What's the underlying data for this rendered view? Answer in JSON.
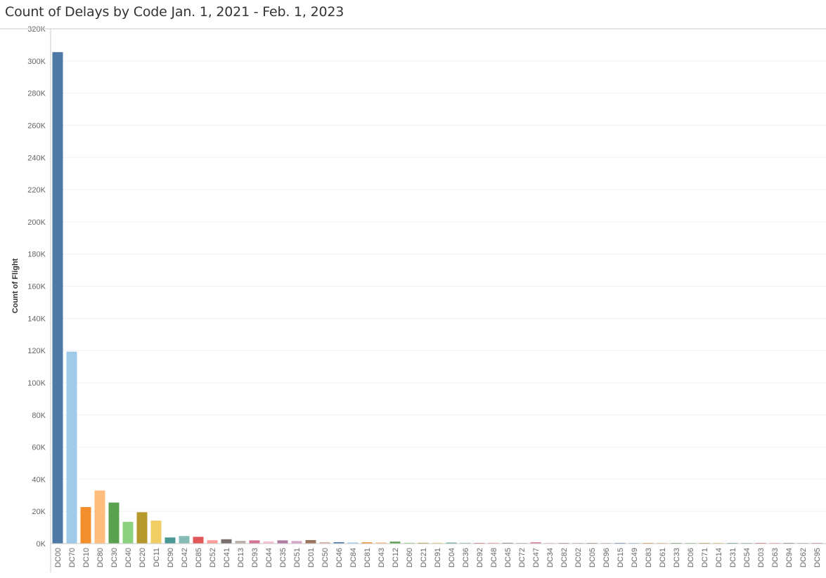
{
  "chart_data": {
    "type": "bar",
    "title": "Count of Delays by Code Jan. 1, 2021 - Feb. 1, 2023",
    "xlabel": "",
    "ylabel": "Count of Flight",
    "ylim": [
      0,
      320000
    ],
    "yticks": [
      0,
      20000,
      40000,
      60000,
      80000,
      100000,
      120000,
      140000,
      160000,
      180000,
      200000,
      220000,
      240000,
      260000,
      280000,
      300000,
      320000
    ],
    "ytick_labels": [
      "0K",
      "20K",
      "40K",
      "60K",
      "80K",
      "100K",
      "120K",
      "140K",
      "160K",
      "180K",
      "200K",
      "220K",
      "240K",
      "260K",
      "280K",
      "300K",
      "320K"
    ],
    "grid": true,
    "categories": [
      "DC00",
      "DC70",
      "DC10",
      "DC80",
      "DC30",
      "DC40",
      "DC20",
      "DC11",
      "DC90",
      "DC42",
      "DC85",
      "DC52",
      "DC41",
      "DC13",
      "DC93",
      "DC44",
      "DC35",
      "DC51",
      "DC01",
      "DC50",
      "DC46",
      "DC84",
      "DC81",
      "DC43",
      "DC12",
      "DC60",
      "DC21",
      "DC91",
      "DC04",
      "DC36",
      "DC92",
      "DC48",
      "DC45",
      "DC72",
      "DC47",
      "DC34",
      "DC82",
      "DC02",
      "DC05",
      "DC96",
      "DC15",
      "DC49",
      "DC83",
      "DC61",
      "DC33",
      "DC06",
      "DC71",
      "DC14",
      "DC31",
      "DC54",
      "DC03",
      "DC63",
      "DC94",
      "DC62",
      "DC95"
    ],
    "values": [
      305500,
      119300,
      22700,
      33000,
      25500,
      13500,
      19500,
      14300,
      3800,
      4700,
      4200,
      2100,
      2700,
      1700,
      2000,
      1300,
      2000,
      1600,
      2200,
      900,
      900,
      700,
      800,
      700,
      1200,
      500,
      500,
      500,
      600,
      500,
      400,
      500,
      500,
      400,
      800,
      300,
      200,
      200,
      200,
      300,
      200,
      100,
      150,
      100,
      100,
      100,
      100,
      100,
      100,
      100,
      100,
      100,
      100,
      300,
      100
    ],
    "colors": [
      "#4e79a7",
      "#a0cbe8",
      "#f28e2b",
      "#ffbe7d",
      "#59a14f",
      "#8cd17d",
      "#b6992d",
      "#f1ce63",
      "#499894",
      "#86bcb6",
      "#e15759",
      "#ff9d9a",
      "#79706e",
      "#bab0ac",
      "#d37295",
      "#fabfd2",
      "#b07aa1",
      "#d4a6c8",
      "#9d7660",
      "#d7b5a6",
      "#4e79a7",
      "#a0cbe8",
      "#f28e2b",
      "#ffbe7d",
      "#59a14f",
      "#8cd17d",
      "#b6992d",
      "#f1ce63",
      "#499894",
      "#86bcb6",
      "#e15759",
      "#ff9d9a",
      "#79706e",
      "#bab0ac",
      "#d37295",
      "#fabfd2",
      "#b07aa1",
      "#d4a6c8",
      "#9d7660",
      "#d7b5a6",
      "#4e79a7",
      "#a0cbe8",
      "#f28e2b",
      "#ffbe7d",
      "#59a14f",
      "#8cd17d",
      "#b6992d",
      "#f1ce63",
      "#499894",
      "#86bcb6",
      "#e15759",
      "#ff9d9a",
      "#79706e",
      "#bab0ac",
      "#d37295"
    ]
  }
}
